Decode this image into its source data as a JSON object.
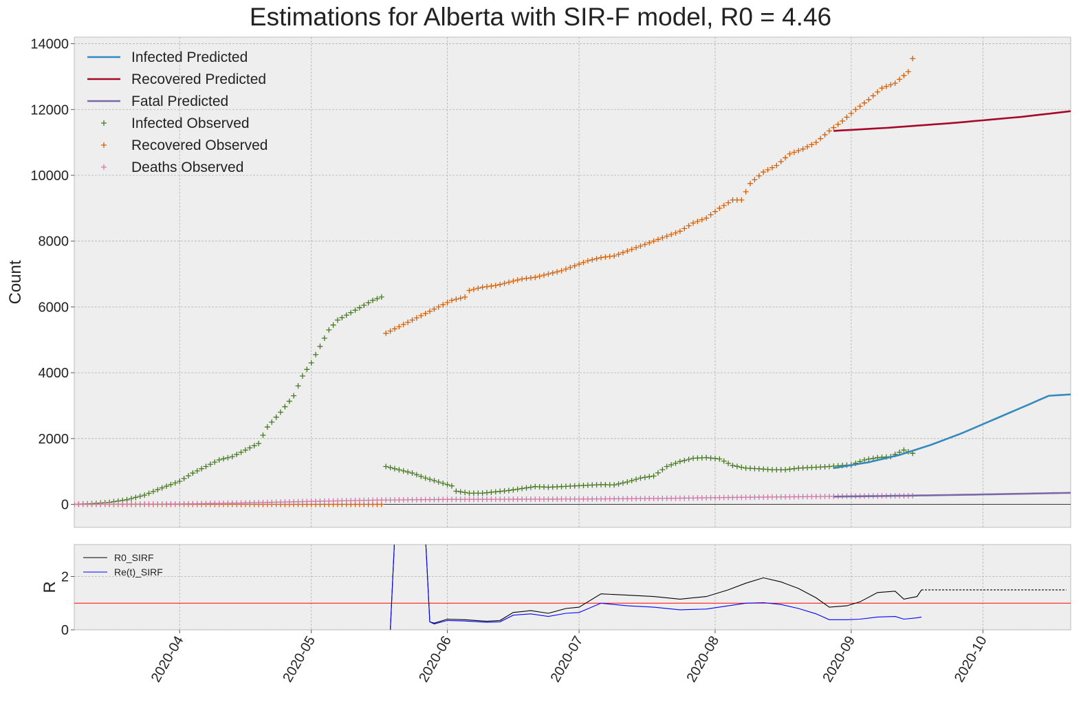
{
  "chart_data": [
    {
      "type": "line+scatter",
      "title": "Estimations for Alberta with SIR-F model, R0 = 4.46",
      "xlabel": "",
      "ylabel": "Count",
      "ylim": [
        -700,
        14200
      ],
      "xlim": [
        "2020-03-08",
        "2020-10-21"
      ],
      "yticks": [
        0,
        2000,
        4000,
        6000,
        8000,
        10000,
        12000,
        14000
      ],
      "xticks": [
        "2020-04",
        "2020-05",
        "2020-06",
        "2020-07",
        "2020-08",
        "2020-09",
        "2020-10"
      ],
      "grid": true,
      "legend": "top-left",
      "legend_entries": [
        "Infected Predicted",
        "Recovered Predicted",
        "Fatal Predicted",
        "Infected Observed",
        "Recovered Observed",
        "Deaths Observed"
      ],
      "colors": {
        "infected_predicted": "#348abd",
        "recovered_predicted": "#a60628",
        "fatal_predicted": "#7a68a6",
        "infected_observed": "#467821",
        "recovered_observed": "#d55e00",
        "deaths_observed": "#cc79a7"
      },
      "series": [
        {
          "name": "Infected Observed",
          "kind": "scatter",
          "points": [
            [
              "2020-03-08",
              0
            ],
            [
              "2020-03-12",
              20
            ],
            [
              "2020-03-16",
              60
            ],
            [
              "2020-03-20",
              140
            ],
            [
              "2020-03-24",
              280
            ],
            [
              "2020-03-28",
              500
            ],
            [
              "2020-04-01",
              700
            ],
            [
              "2020-04-04",
              950
            ],
            [
              "2020-04-07",
              1150
            ],
            [
              "2020-04-10",
              1350
            ],
            [
              "2020-04-13",
              1450
            ],
            [
              "2020-04-16",
              1650
            ],
            [
              "2020-04-19",
              1850
            ],
            [
              "2020-04-21",
              2350
            ],
            [
              "2020-04-24",
              2800
            ],
            [
              "2020-04-27",
              3300
            ],
            [
              "2020-04-29",
              3900
            ],
            [
              "2020-05-01",
              4300
            ],
            [
              "2020-05-03",
              4800
            ],
            [
              "2020-05-05",
              5300
            ],
            [
              "2020-05-07",
              5600
            ],
            [
              "2020-05-09",
              5750
            ],
            [
              "2020-05-11",
              5900
            ],
            [
              "2020-05-13",
              6050
            ],
            [
              "2020-05-15",
              6200
            ],
            [
              "2020-05-17",
              6300
            ],
            [
              "2020-05-18",
              1150
            ],
            [
              "2020-05-21",
              1050
            ],
            [
              "2020-05-24",
              950
            ],
            [
              "2020-05-27",
              800
            ],
            [
              "2020-05-30",
              680
            ],
            [
              "2020-06-02",
              560
            ],
            [
              "2020-06-03",
              400
            ],
            [
              "2020-06-06",
              340
            ],
            [
              "2020-06-09",
              340
            ],
            [
              "2020-06-12",
              380
            ],
            [
              "2020-06-15",
              420
            ],
            [
              "2020-06-18",
              480
            ],
            [
              "2020-06-21",
              540
            ],
            [
              "2020-06-24",
              520
            ],
            [
              "2020-06-27",
              540
            ],
            [
              "2020-06-30",
              560
            ],
            [
              "2020-07-03",
              580
            ],
            [
              "2020-07-06",
              600
            ],
            [
              "2020-07-09",
              590
            ],
            [
              "2020-07-12",
              680
            ],
            [
              "2020-07-15",
              800
            ],
            [
              "2020-07-18",
              860
            ],
            [
              "2020-07-21",
              1150
            ],
            [
              "2020-07-24",
              1300
            ],
            [
              "2020-07-27",
              1400
            ],
            [
              "2020-07-30",
              1420
            ],
            [
              "2020-08-02",
              1380
            ],
            [
              "2020-08-05",
              1180
            ],
            [
              "2020-08-08",
              1100
            ],
            [
              "2020-08-11",
              1080
            ],
            [
              "2020-08-14",
              1050
            ],
            [
              "2020-08-17",
              1050
            ],
            [
              "2020-08-20",
              1100
            ],
            [
              "2020-08-23",
              1120
            ],
            [
              "2020-08-26",
              1140
            ],
            [
              "2020-08-29",
              1170
            ],
            [
              "2020-09-01",
              1200
            ],
            [
              "2020-09-04",
              1350
            ],
            [
              "2020-09-07",
              1420
            ],
            [
              "2020-09-10",
              1450
            ],
            [
              "2020-09-13",
              1650
            ],
            [
              "2020-09-15",
              1550
            ]
          ]
        },
        {
          "name": "Recovered Observed",
          "kind": "scatter",
          "points": [
            [
              "2020-03-08",
              0
            ],
            [
              "2020-04-01",
              0
            ],
            [
              "2020-05-01",
              0
            ],
            [
              "2020-05-17",
              0
            ],
            [
              "2020-05-18",
              5200
            ],
            [
              "2020-05-21",
              5400
            ],
            [
              "2020-05-24",
              5600
            ],
            [
              "2020-05-27",
              5800
            ],
            [
              "2020-05-30",
              6000
            ],
            [
              "2020-06-02",
              6200
            ],
            [
              "2020-06-05",
              6300
            ],
            [
              "2020-06-06",
              6500
            ],
            [
              "2020-06-09",
              6600
            ],
            [
              "2020-06-12",
              6650
            ],
            [
              "2020-06-15",
              6750
            ],
            [
              "2020-06-18",
              6850
            ],
            [
              "2020-06-21",
              6900
            ],
            [
              "2020-06-24",
              7000
            ],
            [
              "2020-06-27",
              7100
            ],
            [
              "2020-06-30",
              7250
            ],
            [
              "2020-07-03",
              7400
            ],
            [
              "2020-07-06",
              7500
            ],
            [
              "2020-07-09",
              7550
            ],
            [
              "2020-07-12",
              7700
            ],
            [
              "2020-07-15",
              7850
            ],
            [
              "2020-07-18",
              8000
            ],
            [
              "2020-07-21",
              8150
            ],
            [
              "2020-07-24",
              8300
            ],
            [
              "2020-07-27",
              8550
            ],
            [
              "2020-07-30",
              8700
            ],
            [
              "2020-08-02",
              9000
            ],
            [
              "2020-08-05",
              9250
            ],
            [
              "2020-08-07",
              9250
            ],
            [
              "2020-08-09",
              9750
            ],
            [
              "2020-08-12",
              10100
            ],
            [
              "2020-08-15",
              10300
            ],
            [
              "2020-08-18",
              10650
            ],
            [
              "2020-08-21",
              10800
            ],
            [
              "2020-08-24",
              11000
            ],
            [
              "2020-08-27",
              11350
            ],
            [
              "2020-08-30",
              11650
            ],
            [
              "2020-09-02",
              12000
            ],
            [
              "2020-09-05",
              12300
            ],
            [
              "2020-09-08",
              12650
            ],
            [
              "2020-09-11",
              12800
            ],
            [
              "2020-09-14",
              13150
            ],
            [
              "2020-09-15",
              13550
            ]
          ]
        },
        {
          "name": "Deaths Observed",
          "kind": "scatter",
          "points": [
            [
              "2020-03-08",
              0
            ],
            [
              "2020-04-01",
              10
            ],
            [
              "2020-04-15",
              40
            ],
            [
              "2020-05-01",
              90
            ],
            [
              "2020-05-17",
              130
            ],
            [
              "2020-06-01",
              150
            ],
            [
              "2020-07-01",
              160
            ],
            [
              "2020-07-20",
              180
            ],
            [
              "2020-08-05",
              210
            ],
            [
              "2020-08-20",
              230
            ],
            [
              "2020-09-01",
              250
            ],
            [
              "2020-09-15",
              260
            ]
          ]
        },
        {
          "name": "Infected Predicted",
          "kind": "line",
          "points": [
            [
              "2020-08-28",
              1100
            ],
            [
              "2020-09-05",
              1280
            ],
            [
              "2020-09-12",
              1500
            ],
            [
              "2020-09-19",
              1800
            ],
            [
              "2020-09-26",
              2150
            ],
            [
              "2020-10-03",
              2550
            ],
            [
              "2020-10-10",
              2950
            ],
            [
              "2020-10-16",
              3300
            ],
            [
              "2020-10-21",
              3340
            ]
          ]
        },
        {
          "name": "Recovered Predicted",
          "kind": "line",
          "points": [
            [
              "2020-08-28",
              11350
            ],
            [
              "2020-09-10",
              11450
            ],
            [
              "2020-09-25",
              11600
            ],
            [
              "2020-10-10",
              11780
            ],
            [
              "2020-10-21",
              11950
            ]
          ]
        },
        {
          "name": "Fatal Predicted",
          "kind": "line",
          "points": [
            [
              "2020-08-28",
              235
            ],
            [
              "2020-09-15",
              265
            ],
            [
              "2020-10-01",
              300
            ],
            [
              "2020-10-21",
              350
            ]
          ]
        }
      ]
    },
    {
      "type": "line",
      "xlabel": "",
      "ylabel": "R",
      "ylim": [
        0,
        3.2
      ],
      "yticks": [
        0,
        2
      ],
      "grid": true,
      "legend": "top-left",
      "legend_entries": [
        "R0_SIRF",
        "Re(t)_SIRF"
      ],
      "reference_line": 1,
      "colors": {
        "r0": "#000000",
        "ret": "#0000ff",
        "reference": "#ff0000"
      },
      "series": [
        {
          "name": "R0_SIRF",
          "points": [
            [
              "2020-05-19",
              0
            ],
            [
              "2020-05-20",
              3.5
            ],
            [
              "2020-05-27",
              3.5
            ],
            [
              "2020-05-28",
              0.3
            ],
            [
              "2020-05-29",
              0.25
            ],
            [
              "2020-06-01",
              0.4
            ],
            [
              "2020-06-05",
              0.38
            ],
            [
              "2020-06-10",
              0.32
            ],
            [
              "2020-06-13",
              0.35
            ],
            [
              "2020-06-16",
              0.65
            ],
            [
              "2020-06-20",
              0.72
            ],
            [
              "2020-06-24",
              0.62
            ],
            [
              "2020-06-28",
              0.8
            ],
            [
              "2020-07-01",
              0.85
            ],
            [
              "2020-07-06",
              1.35
            ],
            [
              "2020-07-12",
              1.3
            ],
            [
              "2020-07-18",
              1.25
            ],
            [
              "2020-07-24",
              1.15
            ],
            [
              "2020-07-30",
              1.25
            ],
            [
              "2020-08-04",
              1.5
            ],
            [
              "2020-08-08",
              1.75
            ],
            [
              "2020-08-12",
              1.95
            ],
            [
              "2020-08-16",
              1.8
            ],
            [
              "2020-08-20",
              1.55
            ],
            [
              "2020-08-24",
              1.2
            ],
            [
              "2020-08-27",
              0.85
            ],
            [
              "2020-08-31",
              0.9
            ],
            [
              "2020-09-03",
              1.05
            ],
            [
              "2020-09-07",
              1.4
            ],
            [
              "2020-09-11",
              1.45
            ],
            [
              "2020-09-13",
              1.15
            ],
            [
              "2020-09-16",
              1.25
            ],
            [
              "2020-09-17",
              1.5
            ]
          ]
        },
        {
          "name": "Re(t)_SIRF",
          "points": [
            [
              "2020-05-19",
              0
            ],
            [
              "2020-05-20",
              3.5
            ],
            [
              "2020-05-27",
              3.5
            ],
            [
              "2020-05-28",
              0.3
            ],
            [
              "2020-05-29",
              0.22
            ],
            [
              "2020-06-01",
              0.35
            ],
            [
              "2020-06-05",
              0.33
            ],
            [
              "2020-06-10",
              0.28
            ],
            [
              "2020-06-13",
              0.3
            ],
            [
              "2020-06-16",
              0.55
            ],
            [
              "2020-06-20",
              0.6
            ],
            [
              "2020-06-24",
              0.5
            ],
            [
              "2020-06-28",
              0.62
            ],
            [
              "2020-07-01",
              0.65
            ],
            [
              "2020-07-06",
              1.0
            ],
            [
              "2020-07-12",
              0.9
            ],
            [
              "2020-07-18",
              0.85
            ],
            [
              "2020-07-24",
              0.75
            ],
            [
              "2020-07-30",
              0.78
            ],
            [
              "2020-08-04",
              0.9
            ],
            [
              "2020-08-08",
              1.0
            ],
            [
              "2020-08-12",
              1.02
            ],
            [
              "2020-08-16",
              0.95
            ],
            [
              "2020-08-20",
              0.8
            ],
            [
              "2020-08-24",
              0.6
            ],
            [
              "2020-08-27",
              0.38
            ],
            [
              "2020-08-31",
              0.38
            ],
            [
              "2020-09-03",
              0.4
            ],
            [
              "2020-09-07",
              0.48
            ],
            [
              "2020-09-11",
              0.5
            ],
            [
              "2020-09-13",
              0.4
            ],
            [
              "2020-09-16",
              0.45
            ],
            [
              "2020-09-17",
              0.48
            ]
          ]
        },
        {
          "name": "R0_SIRF forecast",
          "dashed": true,
          "points": [
            [
              "2020-09-17",
              1.5
            ],
            [
              "2020-10-20",
              1.5
            ]
          ]
        }
      ]
    }
  ]
}
